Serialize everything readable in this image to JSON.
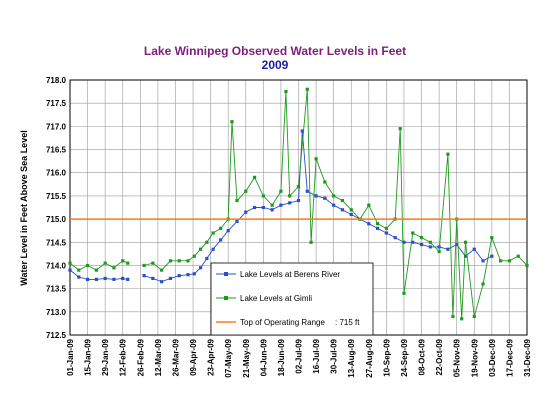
{
  "chart_data": {
    "type": "line",
    "title": "Lake Winnipeg Observed Water Levels in Feet",
    "subtitle": "2009",
    "ylabel": "Water Level in Feet Above Sea Level",
    "xlabel": "",
    "ylim": [
      712.5,
      718.0
    ],
    "yticks": [
      "712.5",
      "713.0",
      "713.5",
      "714.0",
      "714.5",
      "715.0",
      "715.5",
      "716.0",
      "716.5",
      "717.0",
      "717.5",
      "718.0"
    ],
    "xlim": [
      "2009-01-01",
      "2009-12-31"
    ],
    "xticks": [
      "01-Jan-09",
      "15-Jan-09",
      "29-Jan-09",
      "12-Feb-09",
      "26-Feb-09",
      "12-Mar-09",
      "26-Mar-09",
      "09-Apr-09",
      "23-Apr-09",
      "07-May-09",
      "21-May-09",
      "04-Jun-09",
      "18-Jun-09",
      "02-Jul-09",
      "16-Jul-09",
      "30-Jul-09",
      "13-Aug-09",
      "27-Aug-09",
      "10-Sep-09",
      "24-Sep-09",
      "08-Oct-09",
      "22-Oct-09",
      "05-Nov-09",
      "19-Nov-09",
      "03-Dec-09",
      "17-Dec-09",
      "31-Dec-09"
    ],
    "grid": true,
    "legend_position": "center-left",
    "series": [
      {
        "name": "Lake Levels at Berens River",
        "color": "#2a4fc8",
        "marker": "square",
        "points": [
          [
            "2009-01-01",
            713.9
          ],
          [
            "2009-01-08",
            713.75
          ],
          [
            "2009-01-15",
            713.7
          ],
          [
            "2009-01-22",
            713.7
          ],
          [
            "2009-01-29",
            713.72
          ],
          [
            "2009-02-05",
            713.7
          ],
          [
            "2009-02-12",
            713.72
          ],
          [
            "2009-02-16",
            713.7
          ],
          [
            "2009-03-01",
            713.78
          ],
          [
            "2009-03-08",
            713.72
          ],
          [
            "2009-03-15",
            713.65
          ],
          [
            "2009-03-22",
            713.72
          ],
          [
            "2009-03-29",
            713.78
          ],
          [
            "2009-04-05",
            713.8
          ],
          [
            "2009-04-10",
            713.82
          ],
          [
            "2009-04-15",
            713.95
          ],
          [
            "2009-04-20",
            714.15
          ],
          [
            "2009-04-25",
            714.35
          ],
          [
            "2009-05-01",
            714.55
          ],
          [
            "2009-05-07",
            714.75
          ],
          [
            "2009-05-14",
            714.95
          ],
          [
            "2009-05-21",
            715.15
          ],
          [
            "2009-05-28",
            715.25
          ],
          [
            "2009-06-04",
            715.25
          ],
          [
            "2009-06-11",
            715.2
          ],
          [
            "2009-06-18",
            715.3
          ],
          [
            "2009-06-25",
            715.35
          ],
          [
            "2009-07-02",
            715.4
          ],
          [
            "2009-07-05",
            716.9
          ],
          [
            "2009-07-09",
            715.6
          ],
          [
            "2009-07-16",
            715.5
          ],
          [
            "2009-07-23",
            715.45
          ],
          [
            "2009-07-30",
            715.3
          ],
          [
            "2009-08-06",
            715.2
          ],
          [
            "2009-08-13",
            715.1
          ],
          [
            "2009-08-20",
            715.0
          ],
          [
            "2009-08-27",
            714.9
          ],
          [
            "2009-09-03",
            714.8
          ],
          [
            "2009-09-10",
            714.7
          ],
          [
            "2009-09-17",
            714.6
          ],
          [
            "2009-09-24",
            714.5
          ],
          [
            "2009-10-01",
            714.5
          ],
          [
            "2009-10-08",
            714.45
          ],
          [
            "2009-10-15",
            714.4
          ],
          [
            "2009-10-22",
            714.4
          ],
          [
            "2009-10-29",
            714.35
          ],
          [
            "2009-11-05",
            714.45
          ],
          [
            "2009-11-12",
            714.2
          ],
          [
            "2009-11-19",
            714.35
          ],
          [
            "2009-11-26",
            714.1
          ],
          [
            "2009-12-03",
            714.2
          ]
        ]
      },
      {
        "name": "Lake Levels at Gimli",
        "color": "#1e9a1e",
        "marker": "square",
        "points": [
          [
            "2009-01-01",
            714.05
          ],
          [
            "2009-01-08",
            713.9
          ],
          [
            "2009-01-15",
            714.0
          ],
          [
            "2009-01-22",
            713.9
          ],
          [
            "2009-01-29",
            714.05
          ],
          [
            "2009-02-05",
            713.95
          ],
          [
            "2009-02-12",
            714.1
          ],
          [
            "2009-02-16",
            714.05
          ],
          [
            "2009-03-01",
            714.0
          ],
          [
            "2009-03-08",
            714.05
          ],
          [
            "2009-03-15",
            713.9
          ],
          [
            "2009-03-22",
            714.1
          ],
          [
            "2009-03-29",
            714.1
          ],
          [
            "2009-04-05",
            714.1
          ],
          [
            "2009-04-10",
            714.2
          ],
          [
            "2009-04-15",
            714.35
          ],
          [
            "2009-04-20",
            714.5
          ],
          [
            "2009-04-25",
            714.7
          ],
          [
            "2009-05-01",
            714.8
          ],
          [
            "2009-05-07",
            715.0
          ],
          [
            "2009-05-10",
            717.1
          ],
          [
            "2009-05-14",
            715.4
          ],
          [
            "2009-05-21",
            715.6
          ],
          [
            "2009-05-28",
            715.9
          ],
          [
            "2009-06-04",
            715.5
          ],
          [
            "2009-06-11",
            715.3
          ],
          [
            "2009-06-18",
            715.6
          ],
          [
            "2009-06-22",
            717.75
          ],
          [
            "2009-06-25",
            715.5
          ],
          [
            "2009-07-02",
            715.7
          ],
          [
            "2009-07-09",
            717.8
          ],
          [
            "2009-07-12",
            714.5
          ],
          [
            "2009-07-16",
            716.3
          ],
          [
            "2009-07-23",
            715.8
          ],
          [
            "2009-07-30",
            715.5
          ],
          [
            "2009-08-06",
            715.4
          ],
          [
            "2009-08-13",
            715.2
          ],
          [
            "2009-08-20",
            715.0
          ],
          [
            "2009-08-27",
            715.3
          ],
          [
            "2009-09-03",
            714.9
          ],
          [
            "2009-09-10",
            714.8
          ],
          [
            "2009-09-17",
            715.0
          ],
          [
            "2009-09-21",
            716.95
          ],
          [
            "2009-09-24",
            713.4
          ],
          [
            "2009-10-01",
            714.7
          ],
          [
            "2009-10-08",
            714.6
          ],
          [
            "2009-10-15",
            714.5
          ],
          [
            "2009-10-22",
            714.3
          ],
          [
            "2009-10-29",
            716.4
          ],
          [
            "2009-11-02",
            712.9
          ],
          [
            "2009-11-05",
            715.0
          ],
          [
            "2009-11-09",
            712.85
          ],
          [
            "2009-11-12",
            714.5
          ],
          [
            "2009-11-19",
            712.9
          ],
          [
            "2009-11-26",
            713.6
          ],
          [
            "2009-12-03",
            714.6
          ],
          [
            "2009-12-10",
            714.1
          ],
          [
            "2009-12-17",
            714.1
          ],
          [
            "2009-12-24",
            714.2
          ],
          [
            "2009-12-31",
            714.0
          ]
        ]
      },
      {
        "name": "Top of Operating Range",
        "value_label": ": 715 ft",
        "color": "#ff7a1a",
        "constant": 715.0
      }
    ]
  }
}
